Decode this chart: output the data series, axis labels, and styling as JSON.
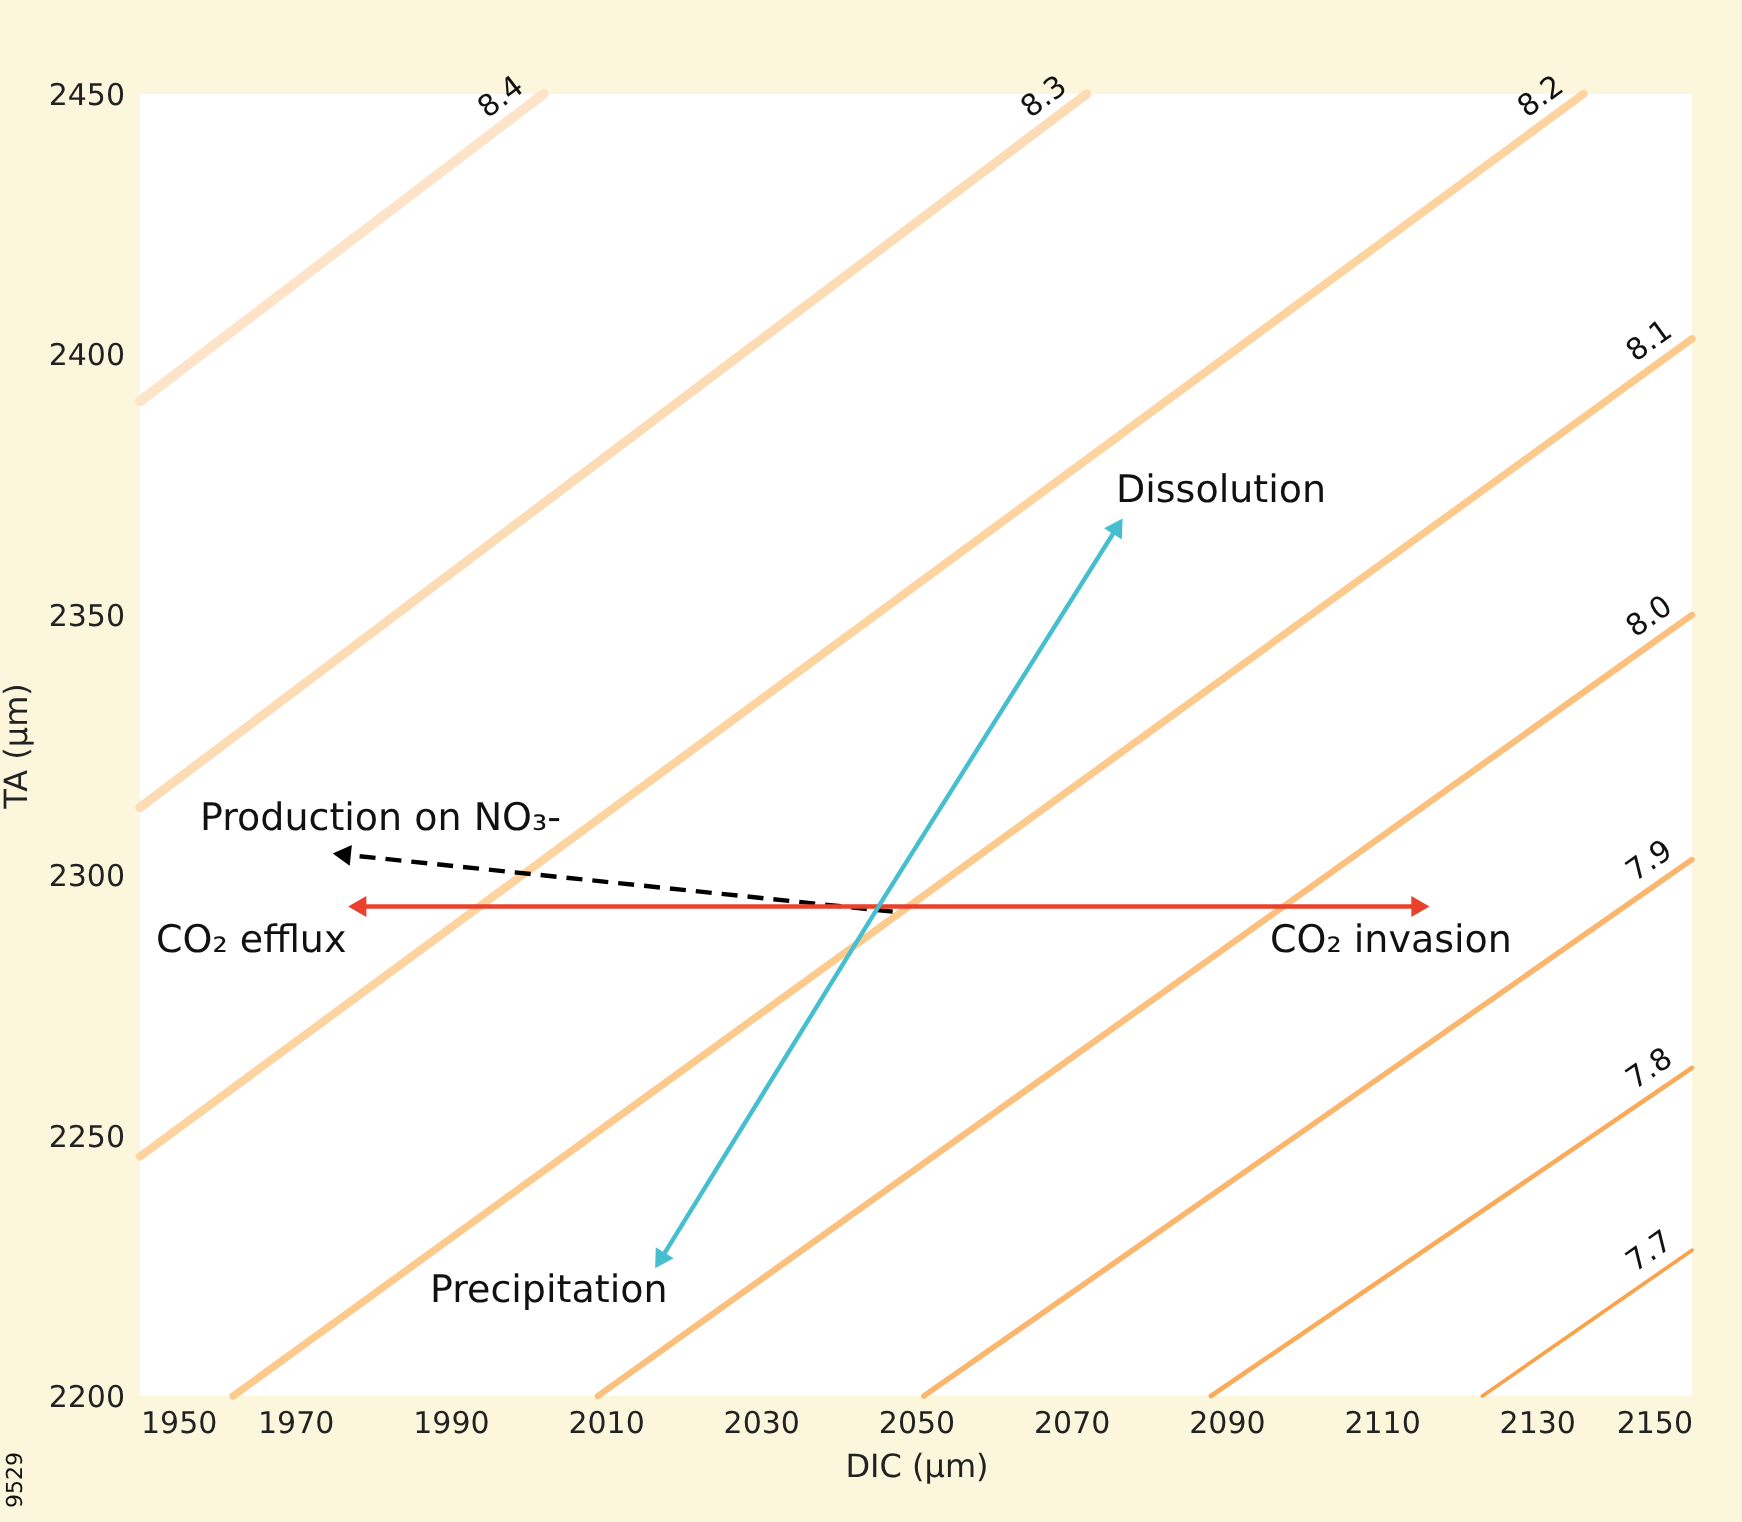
{
  "chart_data": {
    "type": "line",
    "xlabel": "DIC (µm)",
    "ylabel": "TA (µm)",
    "xlim": [
      1950,
      2150
    ],
    "ylim": [
      2200,
      2450
    ],
    "xticks": [
      1950,
      1970,
      1990,
      2010,
      2030,
      2050,
      2070,
      2090,
      2110,
      2130,
      2150
    ],
    "yticks": [
      2200,
      2250,
      2300,
      2350,
      2400,
      2450
    ],
    "grid": false,
    "line_style": "solid",
    "marker": "none",
    "series": [
      {
        "name": "8.4",
        "color": "#fde4c8",
        "x": [
          1950,
          2002
        ],
        "values": [
          2391,
          2450
        ]
      },
      {
        "name": "8.3",
        "color": "#fddcb5",
        "x": [
          1950,
          2072
        ],
        "values": [
          2313,
          2450
        ]
      },
      {
        "name": "8.2",
        "color": "#fdd3a0",
        "x": [
          1950,
          2136
        ],
        "values": [
          2246,
          2450
        ]
      },
      {
        "name": "8.1",
        "color": "#fdca8e",
        "x": [
          1962,
          2150
        ],
        "values": [
          2200,
          2403
        ]
      },
      {
        "name": "8.0",
        "color": "#fcc07e",
        "x": [
          2009,
          2150
        ],
        "values": [
          2200,
          2350
        ]
      },
      {
        "name": "7.9",
        "color": "#fbb56c",
        "x": [
          2051,
          2150
        ],
        "values": [
          2200,
          2303
        ]
      },
      {
        "name": "7.8",
        "color": "#faab5a",
        "x": [
          2088,
          2150
        ],
        "values": [
          2200,
          2263
        ]
      },
      {
        "name": "7.7",
        "color": "#f9a24a",
        "x": [
          2123,
          2150
        ],
        "values": [
          2200,
          2228
        ]
      },
      {
        "color": "#000000",
        "line_style": "dashed",
        "marker": "triangle",
        "x": [
          2047,
          1976
        ],
        "values": [
          2293,
          2304
        ]
      },
      {
        "color": "#e8412c",
        "marker": "triangle",
        "x": [
          1978,
          2045,
          2115
        ],
        "values": [
          2294,
          2294,
          2294
        ]
      },
      {
        "color": "#45bfd0",
        "marker": "triangle",
        "x": [
          2017,
          2046,
          2076
        ],
        "values": [
          2226,
          2296,
          2367
        ]
      }
    ],
    "annotations": [
      "Production on NO₃-",
      "CO₂ efflux",
      "CO₂ invasion",
      "Dissolution",
      "Precipitation",
      "9529"
    ]
  }
}
